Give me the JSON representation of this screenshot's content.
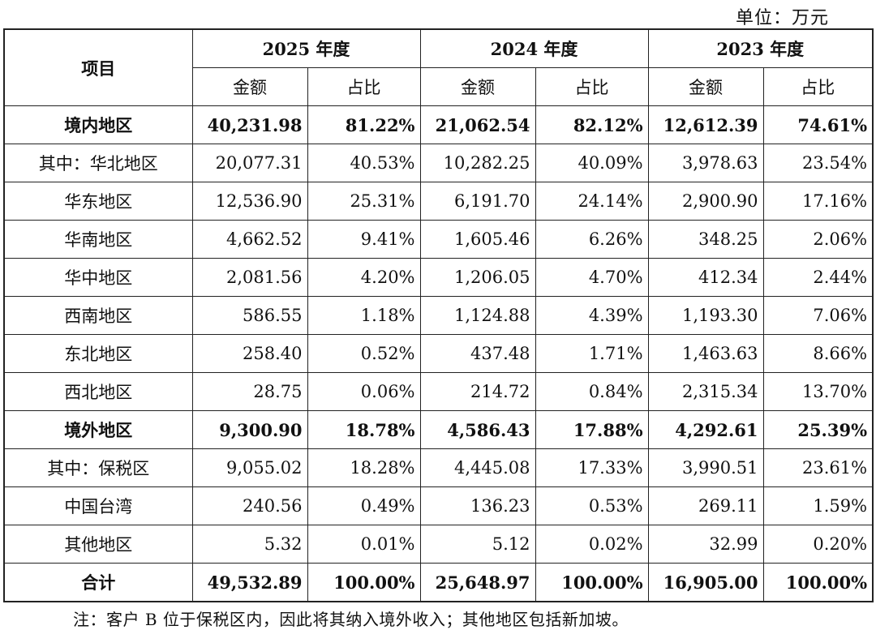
{
  "unit_label": "单位：万元",
  "header": {
    "item": "项目",
    "years": [
      "2025 年度",
      "2024 年度",
      "2023 年度"
    ],
    "amount": "金额",
    "ratio": "占比"
  },
  "rows": [
    {
      "label": "境内地区",
      "bold": true,
      "values": [
        "40,231.98",
        "81.22%",
        "21,062.54",
        "82.12%",
        "12,612.39",
        "74.61%"
      ]
    },
    {
      "label": "其中：华北地区",
      "bold": false,
      "values": [
        "20,077.31",
        "40.53%",
        "10,282.25",
        "40.09%",
        "3,978.63",
        "23.54%"
      ]
    },
    {
      "label": "华东地区",
      "bold": false,
      "values": [
        "12,536.90",
        "25.31%",
        "6,191.70",
        "24.14%",
        "2,900.90",
        "17.16%"
      ]
    },
    {
      "label": "华南地区",
      "bold": false,
      "values": [
        "4,662.52",
        "9.41%",
        "1,605.46",
        "6.26%",
        "348.25",
        "2.06%"
      ]
    },
    {
      "label": "华中地区",
      "bold": false,
      "values": [
        "2,081.56",
        "4.20%",
        "1,206.05",
        "4.70%",
        "412.34",
        "2.44%"
      ]
    },
    {
      "label": "西南地区",
      "bold": false,
      "values": [
        "586.55",
        "1.18%",
        "1,124.88",
        "4.39%",
        "1,193.30",
        "7.06%"
      ]
    },
    {
      "label": "东北地区",
      "bold": false,
      "values": [
        "258.40",
        "0.52%",
        "437.48",
        "1.71%",
        "1,463.63",
        "8.66%"
      ]
    },
    {
      "label": "西北地区",
      "bold": false,
      "values": [
        "28.75",
        "0.06%",
        "214.72",
        "0.84%",
        "2,315.34",
        "13.70%"
      ]
    },
    {
      "label": "境外地区",
      "bold": true,
      "values": [
        "9,300.90",
        "18.78%",
        "4,586.43",
        "17.88%",
        "4,292.61",
        "25.39%"
      ]
    },
    {
      "label": "其中：保税区",
      "bold": false,
      "values": [
        "9,055.02",
        "18.28%",
        "4,445.08",
        "17.33%",
        "3,990.51",
        "23.61%"
      ]
    },
    {
      "label": "中国台湾",
      "bold": false,
      "values": [
        "240.56",
        "0.49%",
        "136.23",
        "0.53%",
        "269.11",
        "1.59%"
      ]
    },
    {
      "label": "其他地区",
      "bold": false,
      "values": [
        "5.32",
        "0.01%",
        "5.12",
        "0.02%",
        "32.99",
        "0.20%"
      ]
    },
    {
      "label": "合计",
      "bold": true,
      "values": [
        "49,532.89",
        "100.00%",
        "25,648.97",
        "100.00%",
        "16,905.00",
        "100.00%"
      ]
    }
  ],
  "note": "注：客户 B 位于保税区内，因此将其纳入境外收入；其他地区包括新加坡。"
}
